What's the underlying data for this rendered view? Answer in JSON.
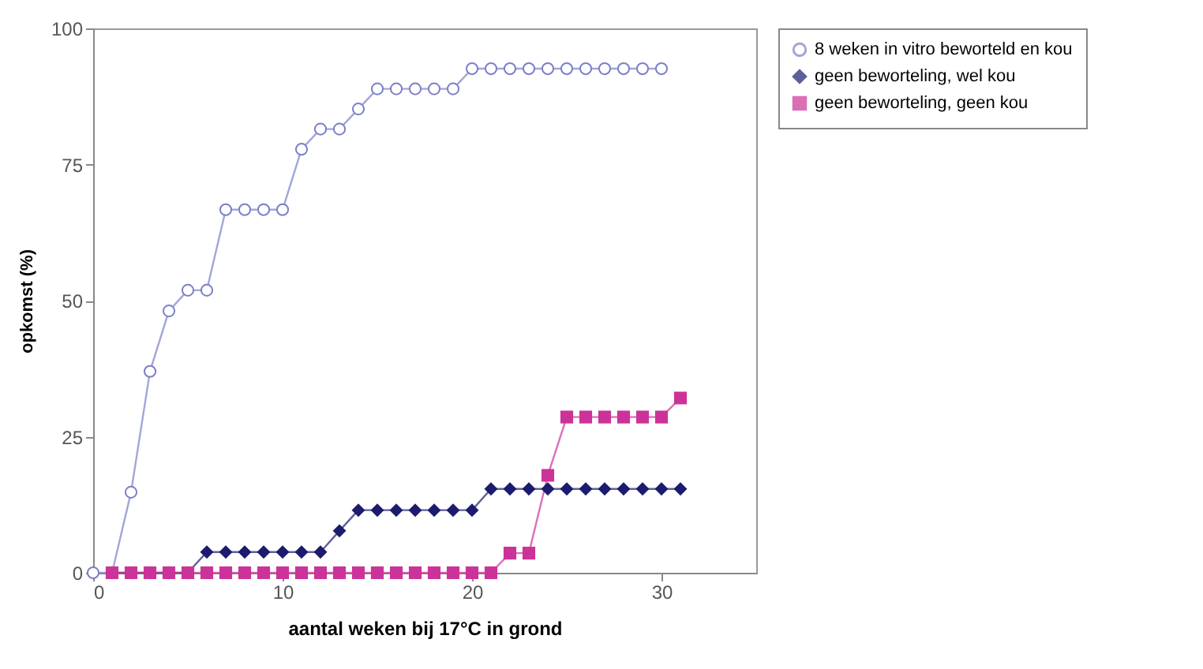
{
  "chart_data": {
    "type": "line",
    "xlabel": "aantal weken bij 17°C in grond",
    "ylabel": "opkomst (%)",
    "xlim": [
      0,
      35
    ],
    "ylim": [
      0,
      100
    ],
    "xticks": [
      0,
      10,
      20,
      30
    ],
    "yticks": [
      0,
      25,
      50,
      75,
      100
    ],
    "legend": "right",
    "grid": false,
    "series": [
      {
        "name": "8 weken in vitro beworteld en kou",
        "color": "#7a80c8",
        "marker": "circle",
        "x": [
          0,
          1,
          2,
          3,
          4,
          5,
          6,
          7,
          8,
          9,
          10,
          11,
          12,
          13,
          14,
          15,
          16,
          17,
          18,
          19,
          20,
          21,
          22,
          23,
          24,
          25,
          26,
          27,
          28,
          29,
          30
        ],
        "values": [
          0,
          0,
          14.8,
          37,
          48.1,
          51.9,
          51.9,
          66.7,
          66.7,
          66.7,
          66.7,
          77.8,
          81.5,
          81.5,
          85.2,
          88.9,
          88.9,
          88.9,
          88.9,
          88.9,
          92.6,
          92.6,
          92.6,
          92.6,
          92.6,
          92.6,
          92.6,
          92.6,
          92.6,
          92.6,
          92.6
        ]
      },
      {
        "name": "geen beworteling, wel kou",
        "color": "#1c1c6e",
        "marker": "diamond",
        "x": [
          1,
          2,
          3,
          4,
          5,
          6,
          7,
          8,
          9,
          10,
          11,
          12,
          13,
          14,
          15,
          16,
          17,
          18,
          19,
          20,
          21,
          22,
          23,
          24,
          25,
          26,
          27,
          28,
          29,
          30,
          31
        ],
        "values": [
          0,
          0,
          0,
          0,
          0,
          3.8,
          3.8,
          3.8,
          3.8,
          3.8,
          3.8,
          3.8,
          7.7,
          11.5,
          11.5,
          11.5,
          11.5,
          11.5,
          11.5,
          11.5,
          15.4,
          15.4,
          15.4,
          15.4,
          15.4,
          15.4,
          15.4,
          15.4,
          15.4,
          15.4,
          15.4
        ]
      },
      {
        "name": "geen beworteling, geen kou",
        "color": "#cc3399",
        "marker": "square",
        "x": [
          1,
          2,
          3,
          4,
          5,
          6,
          7,
          8,
          9,
          10,
          11,
          12,
          13,
          14,
          15,
          16,
          17,
          18,
          19,
          20,
          21,
          22,
          23,
          24,
          25,
          26,
          27,
          28,
          29,
          30,
          31
        ],
        "values": [
          0,
          0,
          0,
          0,
          0,
          0,
          0,
          0,
          0,
          0,
          0,
          0,
          0,
          0,
          0,
          0,
          0,
          0,
          0,
          0,
          0,
          3.6,
          3.6,
          17.9,
          28.6,
          28.6,
          28.6,
          28.6,
          28.6,
          28.6,
          32.1
        ]
      }
    ]
  }
}
